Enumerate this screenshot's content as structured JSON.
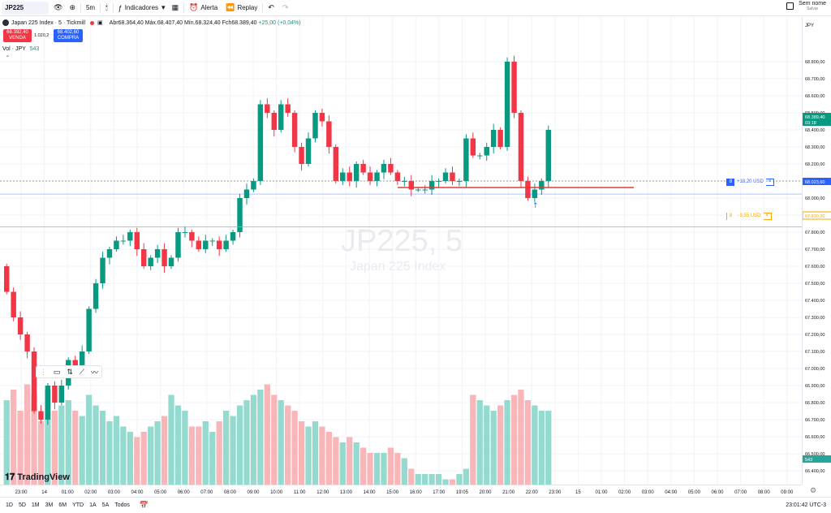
{
  "toolbar": {
    "symbol": "JP225",
    "interval": "5m",
    "indicators_label": "Indicadores",
    "alert_label": "Alerta",
    "replay_label": "Replay",
    "layout_name": "Sem nome",
    "layout_status": "Salvar"
  },
  "legend": {
    "title": "Japan 225 Index · 5 · Tickmill",
    "open": "Abr68.364,40",
    "high": "Máx.68.407,40",
    "low": "Mín.68.324,40",
    "close": "Fch68.389,40",
    "change": "+25,00 (+0,04%)"
  },
  "trade": {
    "sell_price": "68.392,40",
    "sell_label": "VENDA",
    "buy_price": "68.402,60",
    "buy_label": "COMPRA",
    "spread": "1.020,2"
  },
  "volume": {
    "label": "Vol · JPY",
    "value": "543"
  },
  "watermark": {
    "symbol": "JP225, 5",
    "name": "Japan 225 Index"
  },
  "brand": "TradingView",
  "price_axis": {
    "currency": "JPY",
    "ticks": [
      "68.800,00",
      "68.700,00",
      "68.600,00",
      "68.500,00",
      "68.400,00",
      "68.300,00",
      "68.200,00",
      "68.100,00",
      "68.000,00",
      "67.900,00",
      "67.800,00",
      "67.700,00",
      "67.600,00",
      "67.500,00",
      "67.400,00",
      "67.300,00",
      "67.200,00",
      "67.100,00",
      "67.000,00",
      "66.900,00",
      "66.800,00",
      "66.700,00",
      "66.600,00",
      "66.500,00",
      "66.400,00"
    ],
    "last_price": "68.389,40",
    "countdown": "03:18",
    "order1_price": "68.023,60",
    "order2_price": "67.830,20",
    "volume_value": "543"
  },
  "orders": [
    {
      "qty": "8",
      "text": "+18,20 USD",
      "close": "×",
      "color": "#2962ff"
    },
    {
      "qty": "8",
      "text": "−9,55 USD",
      "close": "×",
      "color": "#f7a600"
    }
  ],
  "time_axis": [
    "23:00",
    "14",
    "01:00",
    "02:00",
    "03:00",
    "04:00",
    "05:00",
    "06:00",
    "07:00",
    "08:00",
    "09:00",
    "10:00",
    "11:00",
    "12:00",
    "13:00",
    "14:00",
    "15:00",
    "16:00",
    "17:00",
    "19:05",
    "20:00",
    "21:00",
    "22:00",
    "23:00",
    "15",
    "01:00",
    "02:00",
    "03:00",
    "04:00",
    "05:00",
    "06:00",
    "07:00",
    "08:00",
    "09:00"
  ],
  "bottom_bar": {
    "ranges": [
      "1D",
      "5D",
      "1M",
      "3M",
      "6M",
      "YTD",
      "1A",
      "5A",
      "Todos"
    ],
    "clock": "23:01:42 UTC-3"
  },
  "colors": {
    "up": "#089981",
    "down": "#f23645",
    "accent": "#2962ff",
    "order2": "#f7a600"
  },
  "chart_data": {
    "type": "candlestick",
    "title": "Japan 225 Index · 5 · Tickmill",
    "ylim": [
      66300,
      68900
    ],
    "x_labels": [
      "23:00",
      "14",
      "01:00",
      "02:00",
      "03:00",
      "04:00",
      "05:00",
      "06:00",
      "07:00",
      "08:00",
      "09:00",
      "10:00",
      "11:00",
      "12:00",
      "13:00",
      "14:00",
      "15:00",
      "16:00",
      "17:00",
      "19:05",
      "20:00",
      "21:00",
      "22:00",
      "23:00"
    ],
    "close_path": [
      67450,
      67300,
      67200,
      67100,
      66750,
      66700,
      66900,
      66800,
      66900,
      67050,
      67000,
      67100,
      67350,
      67500,
      67650,
      67700,
      67750,
      67750,
      67800,
      67700,
      67600,
      67650,
      67700,
      67600,
      67650,
      67800,
      67800,
      67750,
      67700,
      67750,
      67750,
      67700,
      67750,
      67800,
      68000,
      68050,
      68100,
      68550,
      68500,
      68400,
      68550,
      68500,
      68300,
      68200,
      68350,
      68500,
      68450,
      68300,
      68100,
      68150,
      68100,
      68200,
      68150,
      68100,
      68150,
      68200,
      68150,
      68100,
      68100,
      68050,
      68050,
      68050,
      68100,
      68100,
      68150,
      68100,
      68100,
      68350,
      68250,
      68250,
      68300,
      68400,
      68300,
      68800,
      68500,
      68100,
      68000,
      68050,
      68100,
      68400
    ],
    "volume_levels": [
      0.8,
      0.9,
      0.7,
      0.95,
      0.85,
      0.6,
      0.9,
      0.7,
      0.75,
      0.8,
      0.7,
      0.65,
      0.85,
      0.75,
      0.7,
      0.6,
      0.65,
      0.55,
      0.5,
      0.45,
      0.5,
      0.55,
      0.6,
      0.65,
      0.85,
      0.75,
      0.7,
      0.55,
      0.55,
      0.6,
      0.5,
      0.6,
      0.7,
      0.65,
      0.75,
      0.8,
      0.85,
      0.9,
      0.95,
      0.85,
      0.8,
      0.75,
      0.7,
      0.6,
      0.55,
      0.6,
      0.55,
      0.5,
      0.45,
      0.4,
      0.45,
      0.4,
      0.35,
      0.3,
      0.3,
      0.3,
      0.35,
      0.3,
      0.25,
      0.15,
      0.1,
      0.1,
      0.1,
      0.1,
      0.05,
      0.05,
      0.1,
      0.15,
      0.85,
      0.8,
      0.75,
      0.7,
      0.75,
      0.8,
      0.85,
      0.9,
      0.8,
      0.75,
      0.7,
      0.7
    ]
  }
}
